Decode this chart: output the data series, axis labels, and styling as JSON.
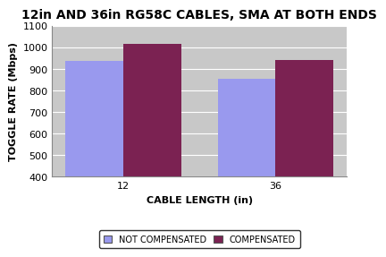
{
  "title": "12in AND 36in RG58C CABLES, SMA AT BOTH ENDS",
  "xlabel": "CABLE LENGTH (in)",
  "ylabel": "TOGGLE RATE (Mbps)",
  "categories": [
    "12",
    "36"
  ],
  "not_compensated": [
    935,
    852
  ],
  "compensated": [
    1017,
    942
  ],
  "bar_color_not_comp": "#9999ee",
  "bar_color_comp": "#7b2252",
  "ylim": [
    400,
    1100
  ],
  "yticks": [
    400,
    500,
    600,
    700,
    800,
    900,
    1000,
    1100
  ],
  "plot_bg_color": "#c8c8c8",
  "fig_bg_color": "#ffffff",
  "title_fontsize": 10,
  "axis_label_fontsize": 8,
  "tick_fontsize": 8,
  "legend_labels": [
    "NOT COMPENSATED",
    "COMPENSATED"
  ],
  "bar_width": 0.38,
  "grid_color": "#aaaaaa"
}
